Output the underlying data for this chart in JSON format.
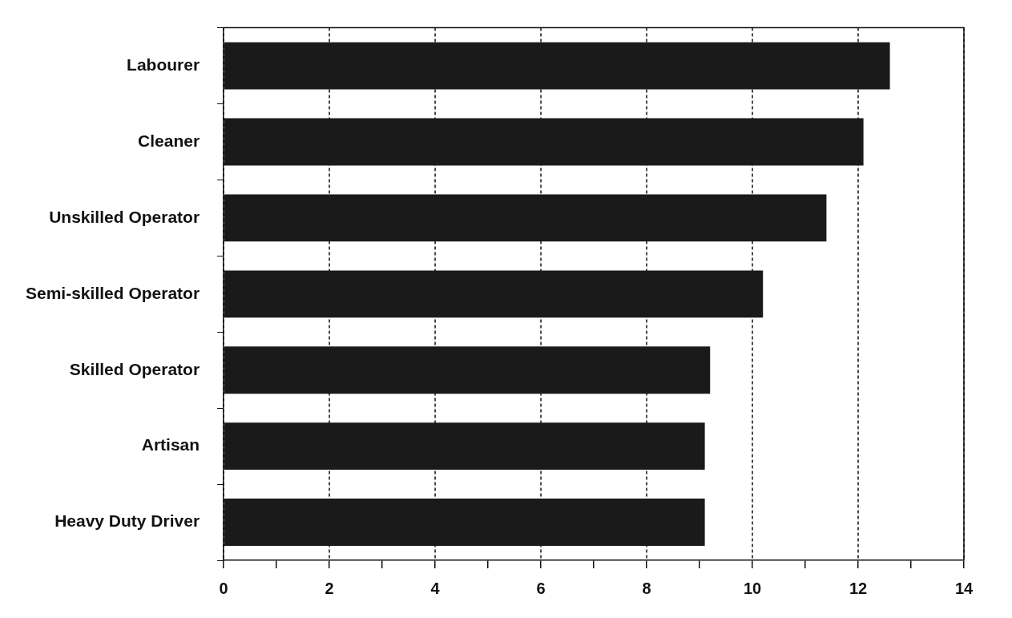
{
  "chart_data": {
    "type": "bar",
    "orientation": "horizontal",
    "categories": [
      "Labourer",
      "Cleaner",
      "Unskilled Operator",
      "Semi-skilled Operator",
      "Skilled Operator",
      "Artisan",
      "Heavy Duty Driver"
    ],
    "values": [
      12.6,
      12.1,
      11.4,
      10.2,
      9.2,
      9.1,
      9.1
    ],
    "color": "#1a1a1a",
    "xlim": [
      0,
      14
    ],
    "xticks": [
      0,
      {
        "value": 1,
        "label": null
      },
      2,
      {
        "value": 3,
        "label": null
      },
      4,
      {
        "value": 5,
        "label": null
      },
      6,
      {
        "value": 7,
        "label": null
      },
      8,
      {
        "value": 9,
        "label": null
      },
      10,
      {
        "value": 11,
        "label": null
      },
      12,
      {
        "value": 13,
        "label": null
      },
      14
    ],
    "grid": "x",
    "legend": false
  }
}
